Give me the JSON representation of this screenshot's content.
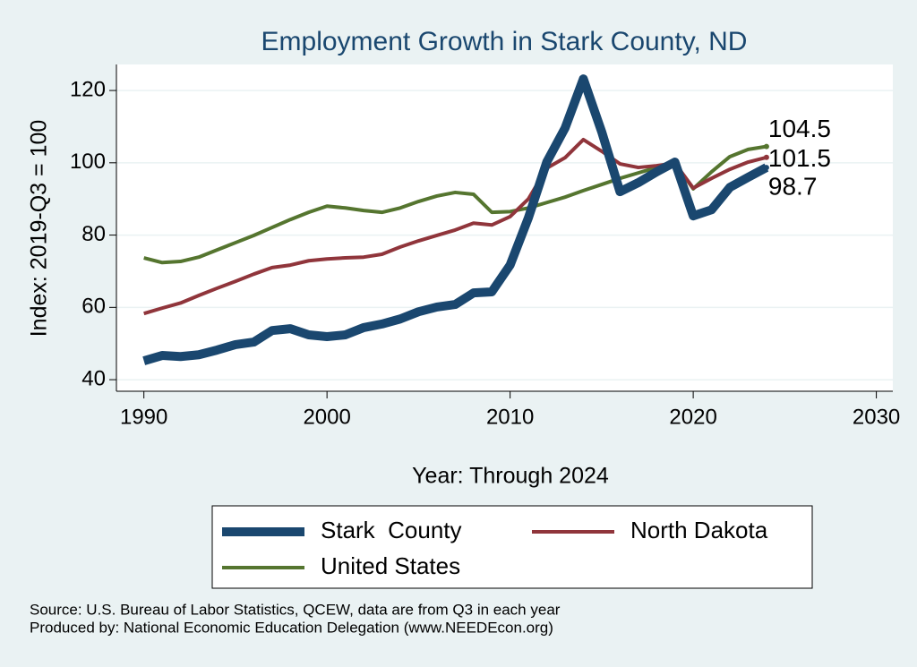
{
  "chart_data": {
    "type": "line",
    "title": "Employment Growth in Stark County, ND",
    "x_label": "Year: Through 2024",
    "y_label": "Index: 2019-Q3 = 100",
    "notes": [
      "Source: U.S. Bureau of Labor Statistics, QCEW, data are from Q3 in each year",
      "Produced by: National Economic Education Delegation (www.NEEDEcon.org)"
    ],
    "x": [
      1990,
      1991,
      1992,
      1993,
      1994,
      1995,
      1996,
      1997,
      1998,
      1999,
      2000,
      2001,
      2002,
      2003,
      2004,
      2005,
      2006,
      2007,
      2008,
      2009,
      2010,
      2011,
      2012,
      2013,
      2014,
      2015,
      2016,
      2017,
      2018,
      2019,
      2020,
      2021,
      2022,
      2023,
      2024
    ],
    "series": [
      {
        "name": "Stark  County",
        "color": "#1a476f",
        "values": [
          45.2,
          46.7,
          46.4,
          46.9,
          48.2,
          49.7,
          50.4,
          53.6,
          54.1,
          52.4,
          51.9,
          52.4,
          54.4,
          55.4,
          56.8,
          58.8,
          60.1,
          60.8,
          64.0,
          64.3,
          71.7,
          84.8,
          100.2,
          109.6,
          123.2,
          108.6,
          92.0,
          94.5,
          97.5,
          100.2,
          85.3,
          87.0,
          93.2,
          96.0,
          98.7
        ]
      },
      {
        "name": "North Dakota",
        "color": "#90353b",
        "values": [
          58.3,
          59.8,
          61.2,
          63.3,
          65.3,
          67.2,
          69.2,
          71.0,
          71.7,
          72.9,
          73.4,
          73.7,
          73.9,
          74.7,
          76.7,
          78.4,
          79.9,
          81.4,
          83.3,
          82.8,
          85.1,
          90.0,
          98.5,
          101.4,
          106.4,
          103.2,
          99.7,
          98.7,
          99.2,
          99.9,
          93.0,
          95.7,
          98.2,
          100.2,
          101.5
        ]
      },
      {
        "name": "United States",
        "color": "#55752f",
        "values": [
          73.7,
          72.4,
          72.7,
          73.9,
          75.9,
          77.9,
          79.9,
          82.1,
          84.3,
          86.3,
          88.0,
          87.5,
          86.8,
          86.3,
          87.5,
          89.3,
          90.8,
          91.8,
          91.3,
          86.3,
          86.5,
          87.5,
          89.0,
          90.5,
          92.3,
          94.0,
          95.7,
          97.2,
          98.7,
          99.9,
          92.8,
          97.5,
          101.7,
          103.7,
          104.5
        ]
      }
    ],
    "xlim": [
      1988.5,
      2030.9
    ],
    "xticks": [
      1990,
      2000,
      2010,
      2020,
      2030
    ],
    "ylim": [
      36.8,
      127.2
    ],
    "yticks": [
      40,
      60,
      80,
      100,
      120
    ],
    "grid": true,
    "legend": "bottom"
  }
}
